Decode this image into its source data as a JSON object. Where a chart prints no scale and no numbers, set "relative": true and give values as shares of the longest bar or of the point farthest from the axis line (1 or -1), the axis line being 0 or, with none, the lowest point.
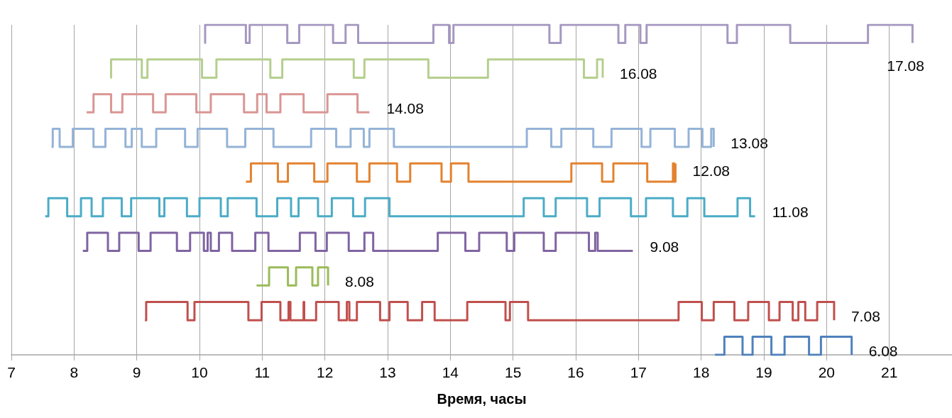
{
  "chart_data": {
    "type": "step",
    "xlabel": "Время, часы",
    "relative": true,
    "xlim": [
      7,
      22
    ],
    "xticks": [
      7,
      8,
      9,
      10,
      11,
      12,
      13,
      14,
      15,
      16,
      17,
      18,
      19,
      20,
      21
    ],
    "grid": "x",
    "legend": false,
    "marker": "none",
    "series": [
      {
        "name": "6.08",
        "color": "#4f81bd",
        "x": [
          18.22,
          18.37,
          18.66,
          18.82,
          19.12,
          19.33,
          19.72,
          19.91,
          20.4
        ],
        "values": [
          0,
          0.055,
          0,
          0.055,
          0,
          0.055,
          0,
          0.055,
          0
        ]
      },
      {
        "name": "7.08",
        "color": "#c0504d",
        "x": [
          9.13,
          9.15,
          9.81,
          9.92,
          10.78,
          10.99,
          11.29,
          11.42,
          11.45,
          11.66,
          11.67,
          11.86,
          12.22,
          12.35,
          12.39,
          12.51,
          12.88,
          13.03,
          13.32,
          13.55,
          13.75,
          14.27,
          14.88,
          14.95,
          15.24,
          17.64,
          18.01,
          18.2,
          18.53,
          18.75,
          19.08,
          19.25,
          19.46,
          19.55,
          19.66,
          19.85,
          20.12
        ],
        "values": [
          0.105,
          0.16,
          0.105,
          0.16,
          0.105,
          0.16,
          0.105,
          0.16,
          0.105,
          0.16,
          0.105,
          0.16,
          0.105,
          0.16,
          0.105,
          0.16,
          0.105,
          0.16,
          0.105,
          0.16,
          0.105,
          0.16,
          0.105,
          0.16,
          0.105,
          0.16,
          0.105,
          0.16,
          0.105,
          0.16,
          0.105,
          0.16,
          0.105,
          0.16,
          0.105,
          0.16,
          0.105
        ]
      },
      {
        "name": "8.08",
        "color": "#9bbb59",
        "x": [
          10.91,
          11.11,
          11.41,
          11.54,
          11.8,
          11.89,
          12.05
        ],
        "values": [
          0.21,
          0.265,
          0.21,
          0.265,
          0.21,
          0.265,
          0.21
        ]
      },
      {
        "name": "9.08",
        "color": "#8064a2",
        "x": [
          8.14,
          8.21,
          8.54,
          8.72,
          9.03,
          9.22,
          9.64,
          9.85,
          10.07,
          10.13,
          10.18,
          10.31,
          10.52,
          10.89,
          11.1,
          11.6,
          11.85,
          12.03,
          12.38,
          12.63,
          12.77,
          13.8,
          14.24,
          14.46,
          14.9,
          15.02,
          15.49,
          15.68,
          16.21,
          16.31,
          16.35,
          16.91
        ],
        "values": [
          0.315,
          0.37,
          0.315,
          0.37,
          0.315,
          0.37,
          0.315,
          0.37,
          0.315,
          0.37,
          0.315,
          0.37,
          0.315,
          0.37,
          0.315,
          0.37,
          0.315,
          0.37,
          0.315,
          0.37,
          0.315,
          0.37,
          0.315,
          0.37,
          0.315,
          0.37,
          0.315,
          0.37,
          0.315,
          0.37,
          0.315,
          0.315
        ]
      },
      {
        "name": "11.08",
        "color": "#4bacc6",
        "x": [
          7.54,
          7.59,
          7.89,
          8.11,
          8.28,
          8.46,
          8.76,
          8.91,
          9.36,
          9.44,
          9.8,
          10.0,
          10.34,
          10.45,
          10.91,
          11.24,
          11.46,
          11.58,
          11.89,
          12.11,
          12.45,
          12.64,
          13.03,
          15.17,
          15.49,
          15.68,
          16.18,
          16.38,
          16.88,
          17.12,
          17.55,
          17.78,
          18.05,
          18.58,
          18.78,
          18.86
        ],
        "values": [
          0.42,
          0.475,
          0.42,
          0.475,
          0.42,
          0.475,
          0.42,
          0.475,
          0.42,
          0.475,
          0.42,
          0.475,
          0.42,
          0.475,
          0.42,
          0.475,
          0.42,
          0.475,
          0.42,
          0.475,
          0.42,
          0.475,
          0.42,
          0.475,
          0.42,
          0.475,
          0.42,
          0.475,
          0.42,
          0.475,
          0.42,
          0.475,
          0.42,
          0.475,
          0.42,
          0.42
        ]
      },
      {
        "name": "12.08",
        "color": "#e3822f",
        "x": [
          10.74,
          10.82,
          11.25,
          11.41,
          11.83,
          12.04,
          12.51,
          12.71,
          13.15,
          13.36,
          13.86,
          14.01,
          14.29,
          15.93,
          16.42,
          16.6,
          17.14,
          17.55,
          17.57,
          17.59
        ],
        "values": [
          0.525,
          0.58,
          0.525,
          0.58,
          0.525,
          0.58,
          0.525,
          0.58,
          0.525,
          0.58,
          0.525,
          0.58,
          0.525,
          0.58,
          0.525,
          0.58,
          0.525,
          0.58,
          0.525,
          0.58
        ]
      },
      {
        "name": "13.08",
        "color": "#95b3d7",
        "x": [
          7.64,
          7.66,
          7.77,
          7.98,
          8.31,
          8.5,
          8.82,
          8.92,
          9.08,
          9.31,
          9.77,
          9.97,
          10.44,
          10.73,
          11.18,
          11.78,
          12.18,
          12.41,
          12.62,
          12.71,
          13.1,
          15.22,
          15.61,
          15.77,
          16.28,
          16.57,
          17.05,
          17.19,
          17.58,
          17.8,
          18.02,
          18.16,
          18.2
        ],
        "values": [
          0.63,
          0.685,
          0.63,
          0.685,
          0.63,
          0.685,
          0.63,
          0.685,
          0.63,
          0.685,
          0.63,
          0.685,
          0.63,
          0.685,
          0.63,
          0.685,
          0.63,
          0.685,
          0.63,
          0.685,
          0.63,
          0.685,
          0.63,
          0.685,
          0.63,
          0.685,
          0.63,
          0.685,
          0.63,
          0.685,
          0.63,
          0.685,
          0.63
        ]
      },
      {
        "name": "14.08",
        "color": "#d99694",
        "x": [
          8.2,
          8.31,
          8.59,
          8.77,
          9.26,
          9.46,
          9.95,
          10.18,
          10.71,
          10.92,
          11.07,
          11.29,
          11.66,
          12.04,
          12.52,
          12.71
        ],
        "values": [
          0.735,
          0.79,
          0.735,
          0.79,
          0.735,
          0.79,
          0.735,
          0.79,
          0.735,
          0.79,
          0.735,
          0.79,
          0.735,
          0.79,
          0.735,
          0.735
        ]
      },
      {
        "name": "16.08",
        "color": "#b5cf8e",
        "x": [
          8.58,
          8.59,
          9.08,
          9.17,
          10.04,
          10.27,
          11.13,
          11.32,
          12.46,
          12.63,
          13.65,
          14.6,
          16.13,
          16.34,
          16.43
        ],
        "values": [
          0.84,
          0.895,
          0.84,
          0.895,
          0.84,
          0.895,
          0.84,
          0.895,
          0.84,
          0.895,
          0.84,
          0.895,
          0.84,
          0.895,
          0.84
        ]
      },
      {
        "name": "17.08",
        "color": "#a598c0",
        "x": [
          10.08,
          10.09,
          10.74,
          10.8,
          11.4,
          11.59,
          12.13,
          12.33,
          12.53,
          13.73,
          13.98,
          14.05,
          15.58,
          15.76,
          16.68,
          16.79,
          17.03,
          17.13,
          18.42,
          18.57,
          19.42,
          20.66,
          21.37
        ],
        "values": [
          0.945,
          1,
          0.945,
          1,
          0.945,
          1,
          0.945,
          1,
          0.945,
          1,
          0.945,
          1,
          0.945,
          1,
          0.945,
          1,
          0.945,
          1,
          0.945,
          1,
          0.945,
          1,
          0.945
        ]
      }
    ]
  }
}
